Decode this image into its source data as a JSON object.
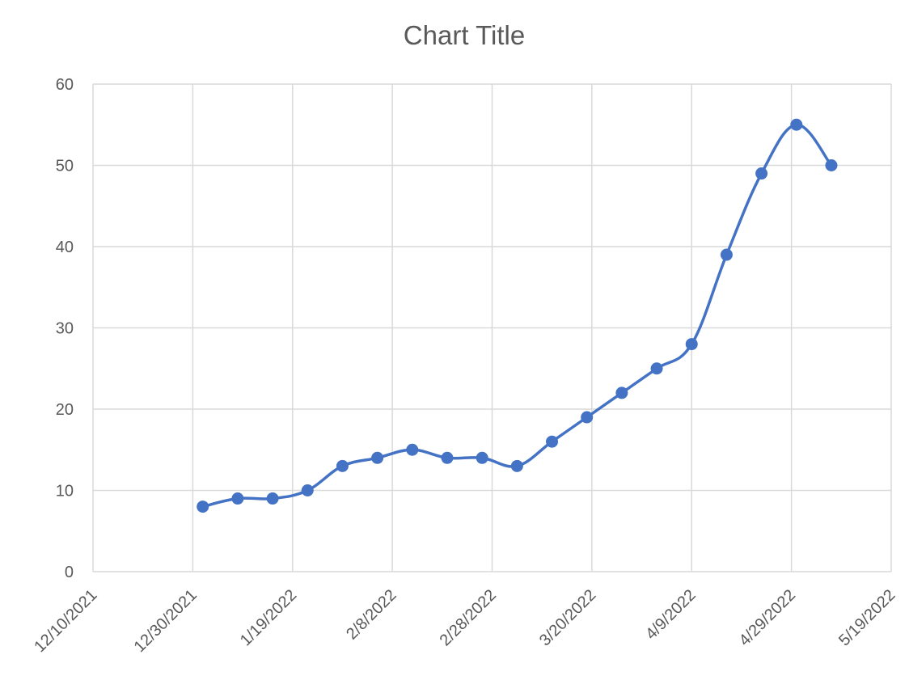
{
  "chart_data": {
    "type": "line",
    "title": "Chart Title",
    "xlabel": "",
    "ylabel": "",
    "x_axis": {
      "type": "date",
      "min": "2021-12-10",
      "max": "2022-05-19",
      "tick_labels": [
        "12/10/2021",
        "12/30/2021",
        "1/19/2022",
        "2/8/2022",
        "2/28/2022",
        "3/20/2022",
        "4/9/2022",
        "4/29/2022",
        "5/19/2022"
      ]
    },
    "y_axis": {
      "min": 0,
      "max": 60,
      "tick_labels": [
        "0",
        "10",
        "20",
        "30",
        "40",
        "50",
        "60"
      ]
    },
    "grid": true,
    "legend": "none",
    "smooth": true,
    "series": [
      {
        "color": "#4472c4",
        "marker": "circle",
        "points": [
          {
            "x": "2022-01-01",
            "y": 8
          },
          {
            "x": "2022-01-08",
            "y": 9
          },
          {
            "x": "2022-01-15",
            "y": 9
          },
          {
            "x": "2022-01-22",
            "y": 10
          },
          {
            "x": "2022-01-29",
            "y": 13
          },
          {
            "x": "2022-02-05",
            "y": 14
          },
          {
            "x": "2022-02-12",
            "y": 15
          },
          {
            "x": "2022-02-19",
            "y": 14
          },
          {
            "x": "2022-02-26",
            "y": 14
          },
          {
            "x": "2022-03-05",
            "y": 13
          },
          {
            "x": "2022-03-12",
            "y": 16
          },
          {
            "x": "2022-03-19",
            "y": 19
          },
          {
            "x": "2022-03-26",
            "y": 22
          },
          {
            "x": "2022-04-02",
            "y": 25
          },
          {
            "x": "2022-04-09",
            "y": 28
          },
          {
            "x": "2022-04-16",
            "y": 39
          },
          {
            "x": "2022-04-23",
            "y": 49
          },
          {
            "x": "2022-04-30",
            "y": 55
          },
          {
            "x": "2022-05-07",
            "y": 50
          }
        ]
      }
    ]
  }
}
